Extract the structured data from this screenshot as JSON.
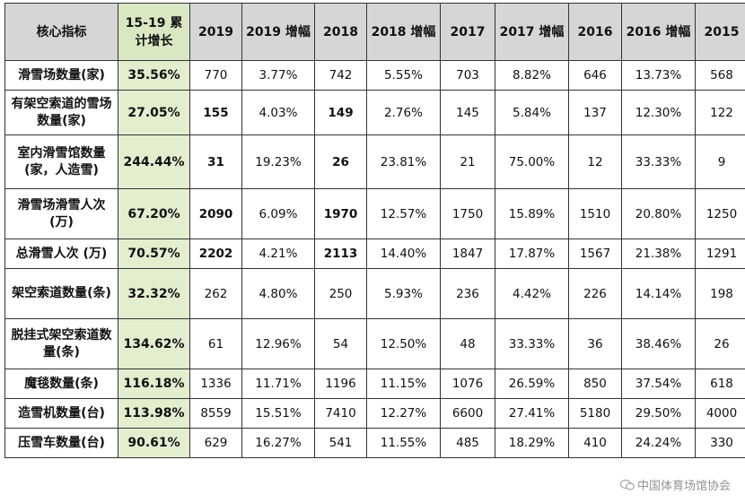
{
  "columns": [
    {
      "label": "核心指标"
    },
    {
      "label": "15-19 累计增长"
    },
    {
      "label": "2019"
    },
    {
      "label": "2019 增幅"
    },
    {
      "label": "2018"
    },
    {
      "label": "2018 增幅"
    },
    {
      "label": "2017"
    },
    {
      "label": "2017 增幅"
    },
    {
      "label": "2016"
    },
    {
      "label": "2016 增幅"
    },
    {
      "label": "2015"
    }
  ],
  "rows": [
    {
      "label": "滑雪场数量(家)",
      "growth": "35.56%",
      "v2019": "770",
      "g2019": "3.77%",
      "v2018": "742",
      "g2018": "5.55%",
      "v2017": "703",
      "g2017": "8.82%",
      "v2016": "646",
      "g2016": "13.73%",
      "v2015": "568",
      "bold_values": false
    },
    {
      "label": "有架空索道的雪场数量(家)",
      "growth": "27.05%",
      "v2019": "155",
      "g2019": "4.03%",
      "v2018": "149",
      "g2018": "2.76%",
      "v2017": "145",
      "g2017": "5.84%",
      "v2016": "137",
      "g2016": "12.30%",
      "v2015": "122",
      "bold_values": true
    },
    {
      "label": "室内滑雪馆数量(家，人造雪)",
      "growth": "244.44%",
      "v2019": "31",
      "g2019": "19.23%",
      "v2018": "26",
      "g2018": "23.81%",
      "v2017": "21",
      "g2017": "75.00%",
      "v2016": "12",
      "g2016": "33.33%",
      "v2015": "9",
      "bold_values": true
    },
    {
      "label": "滑雪场滑雪人次(万)",
      "growth": "67.20%",
      "v2019": "2090",
      "g2019": "6.09%",
      "v2018": "1970",
      "g2018": "12.57%",
      "v2017": "1750",
      "g2017": "15.89%",
      "v2016": "1510",
      "g2016": "20.80%",
      "v2015": "1250",
      "bold_values": true
    },
    {
      "label": "总滑雪人次 (万)",
      "growth": "70.57%",
      "v2019": "2202",
      "g2019": "4.21%",
      "v2018": "2113",
      "g2018": "14.40%",
      "v2017": "1847",
      "g2017": "17.87%",
      "v2016": "1567",
      "g2016": "21.38%",
      "v2015": "1291",
      "bold_values": true
    },
    {
      "label": "架空索道数量(条)",
      "growth": "32.32%",
      "v2019": "262",
      "g2019": "4.80%",
      "v2018": "250",
      "g2018": "5.93%",
      "v2017": "236",
      "g2017": "4.42%",
      "v2016": "226",
      "g2016": "14.14%",
      "v2015": "198",
      "bold_values": false
    },
    {
      "label": "脱挂式架空索道数量(条)",
      "growth": "134.62%",
      "v2019": "61",
      "g2019": "12.96%",
      "v2018": "54",
      "g2018": "12.50%",
      "v2017": "48",
      "g2017": "33.33%",
      "v2016": "36",
      "g2016": "38.46%",
      "v2015": "26",
      "bold_values": false
    },
    {
      "label": "魔毯数量(条)",
      "growth": "116.18%",
      "v2019": "1336",
      "g2019": "11.71%",
      "v2018": "1196",
      "g2018": "11.15%",
      "v2017": "1076",
      "g2017": "26.59%",
      "v2016": "850",
      "g2016": "37.54%",
      "v2015": "618",
      "bold_values": false
    },
    {
      "label": "造雪机数量(台)",
      "growth": "113.98%",
      "v2019": "8559",
      "g2019": "15.51%",
      "v2018": "7410",
      "g2018": "12.27%",
      "v2017": "6600",
      "g2017": "27.41%",
      "v2016": "5180",
      "g2016": "29.50%",
      "v2015": "4000",
      "bold_values": false
    },
    {
      "label": "压雪车数量(台)",
      "growth": "90.61%",
      "v2019": "629",
      "g2019": "16.27%",
      "v2018": "541",
      "g2018": "11.55%",
      "v2017": "485",
      "g2017": "18.29%",
      "v2016": "410",
      "g2016": "24.24%",
      "v2015": "330",
      "bold_values": false
    }
  ],
  "watermark": {
    "text": "中国体育场馆协会",
    "icon": "wechat-icon"
  },
  "colors": {
    "header_bg": "#d6d6d6",
    "growth_header_bg": "#d9e8c2",
    "growth_cell_bg": "#e3eecf"
  }
}
